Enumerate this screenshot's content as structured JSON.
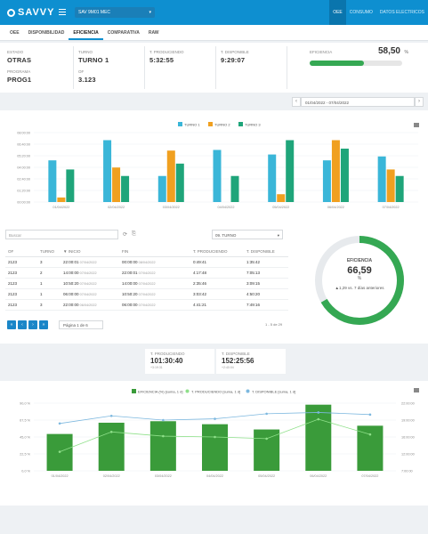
{
  "header": {
    "logo": "SAVVY",
    "machine": "SAV 9M01 MEC",
    "machine_caret": "▾",
    "tabs": [
      "OEE",
      "CONSUMO",
      "DATOS ELECTRICOS"
    ],
    "active_tab": 0
  },
  "subtabs": [
    "OEE",
    "DISPONIBILIDAD",
    "EFICIENCIA",
    "COMPARATIVA",
    "RAW"
  ],
  "info": {
    "estado_label": "ESTADO",
    "estado": "OTRAS",
    "programa_label": "PROGRAMA",
    "programa": "PROG1",
    "turno_label": "TURNO",
    "turno": "TURNO 1",
    "of_label": "OF",
    "of": "3.123",
    "tprod_label": "T. PRODUCIENDO",
    "tprod": "5:32:55",
    "tdisp_label": "T. DISPONIBLE",
    "tdisp": "9:29:07",
    "eff_label": "EFICIENCIA",
    "eff_value": "58,50",
    "eff_unit": "%",
    "eff_fraction": 0.585
  },
  "date_range": "01/04/2022 - 07/04/2022",
  "chart_data": [
    {
      "type": "bar",
      "categories": [
        "01/04/2022",
        "02/04/2022",
        "03/04/2022",
        "04/04/2022",
        "05/04/2022",
        "06/04/2022",
        "07/04/2022"
      ],
      "series": [
        {
          "name": "TURNO 1",
          "color": "#3ab6d8",
          "values": [
            3.2,
            4.75,
            2.0,
            4.0,
            3.65,
            3.2,
            3.5
          ]
        },
        {
          "name": "TURNO 2",
          "color": "#f0a020",
          "values": [
            0.35,
            2.65,
            3.95,
            0.0,
            0.6,
            4.75,
            2.5
          ]
        },
        {
          "name": "TURNO 3",
          "color": "#1fa57a",
          "values": [
            2.5,
            2.0,
            2.95,
            2.0,
            4.75,
            4.1,
            2.0
          ]
        }
      ],
      "ytick_labels": [
        "00:00:00",
        "01:20:00",
        "02:40:00",
        "04:00:00",
        "05:20:00",
        "06:40:00",
        "08:00:00"
      ],
      "ylim": [
        0,
        5.33
      ]
    },
    {
      "type": "bar+line",
      "categories": [
        "01/04/2022",
        "02/04/2022",
        "03/04/2022",
        "04/04/2022",
        "05/04/2022",
        "06/04/2022",
        "07/04/2022"
      ],
      "series": [
        {
          "name": "EFICIENCIA (%) [suma, 1 d]",
          "color": "#3a9b3a",
          "type": "bar",
          "values": [
            49,
            64,
            66,
            62,
            55,
            88,
            60
          ]
        },
        {
          "name": "T. PRODUCIENDO [suma, 1 d]",
          "color": "#8fe08a",
          "type": "line",
          "axis": "right",
          "values": [
            10.5,
            15.2,
            14.2,
            14.0,
            13.6,
            18.2,
            14.6
          ]
        },
        {
          "name": "T. DISPONIBLE [suma, 1 d]",
          "color": "#7db8df",
          "type": "line",
          "axis": "right",
          "values": [
            17.2,
            19.0,
            18.0,
            18.3,
            19.5,
            19.8,
            19.3
          ]
        }
      ],
      "left_ticks": [
        "0,0 %",
        "22,5 %",
        "45,0 %",
        "67,5 %",
        "90,0 %"
      ],
      "right_ticks": [
        "7:00:00",
        "12:00:00",
        "16:00:00",
        "19:00:00",
        "22:00:00"
      ],
      "ylim_left": [
        0,
        90
      ],
      "ylim_right": [
        6,
        22
      ]
    }
  ],
  "table": {
    "search_placeholder": "Buscar",
    "turn_filter": "09. TURNO",
    "headers": [
      "OF",
      "TURNO",
      "▼ INICIO",
      "FIN",
      "T. PRODUCIENDO",
      "T. DISPONIBLE"
    ],
    "rows": [
      {
        "of": "2123",
        "turno": "3",
        "inicio": "22:00:01",
        "inicio_d": "07/04/2022",
        "fin": "00:00:00",
        "fin_d": "08/04/2022",
        "tprod": "0:49:41",
        "tdisp": "1:35:42"
      },
      {
        "of": "2123",
        "turno": "2",
        "inicio": "14:00:00",
        "inicio_d": "07/04/2022",
        "fin": "22:00:01",
        "fin_d": "07/04/2022",
        "tprod": "4:17:48",
        "tdisp": "7:05:13"
      },
      {
        "of": "2123",
        "turno": "1",
        "inicio": "10:50:20",
        "inicio_d": "07/04/2022",
        "fin": "14:00:00",
        "fin_d": "07/04/2022",
        "tprod": "2:35:46",
        "tdisp": "3:09:15"
      },
      {
        "of": "2123",
        "turno": "1",
        "inicio": "06:00:00",
        "inicio_d": "07/04/2022",
        "fin": "10:50:20",
        "fin_d": "07/04/2022",
        "tprod": "3:03:42",
        "tdisp": "4:50:20"
      },
      {
        "of": "2123",
        "turno": "3",
        "inicio": "22:00:00",
        "inicio_d": "06/04/2022",
        "fin": "06:00:00",
        "fin_d": "07/04/2022",
        "tprod": "4:41:21",
        "tdisp": "7:49:16"
      }
    ],
    "pager": {
      "page_select": "Página 1 de 6",
      "info": "1 - 5 de 29",
      "buttons": [
        "«",
        "‹",
        "›",
        "»"
      ]
    }
  },
  "donut": {
    "label": "EFICIENCIA",
    "value": "66,59",
    "unit": "%",
    "comparison": "▲1,29 vs. 7 días anteriores",
    "fraction": 0.6659,
    "color": "#35a853"
  },
  "mid": {
    "tprod_label": "T. PRODUCIENDO",
    "tprod": "101:30:40",
    "tprod_sub": "+3:19:31",
    "tdisp_label": "T. DISPONIBLE",
    "tdisp": "152:25:56",
    "tdisp_sub": "+2:40:04"
  },
  "icons": {
    "menu": "menu-icon",
    "export": "export-icon",
    "refresh": "refresh-icon"
  }
}
